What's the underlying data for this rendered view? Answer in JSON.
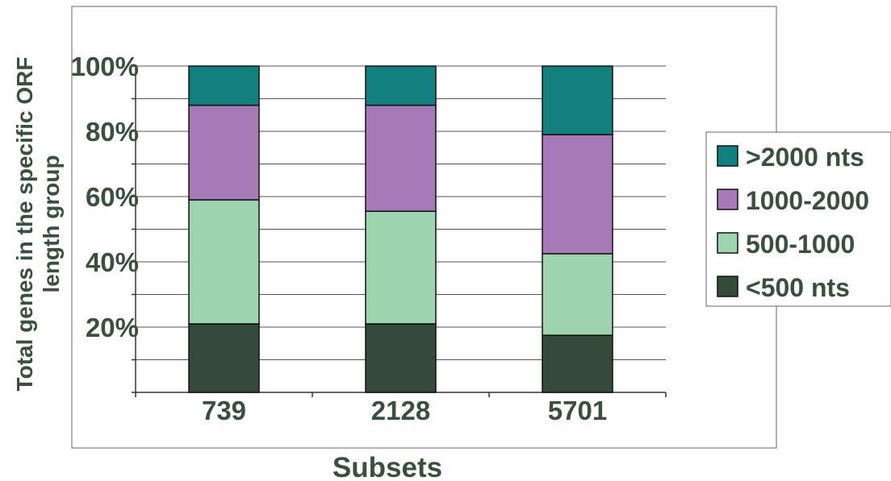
{
  "chart_data": {
    "type": "bar",
    "stacked": "percent",
    "categories": [
      "739",
      "2128",
      "5701"
    ],
    "series": [
      {
        "name": "<500 nts",
        "color": "#354a3a",
        "values": [
          21,
          21,
          17.5
        ]
      },
      {
        "name": "500-1000",
        "color": "#9fd4b0",
        "values": [
          38,
          34.5,
          25
        ]
      },
      {
        "name": "1000-2000",
        "color": "#a57ab7",
        "values": [
          29,
          32.5,
          36.5
        ]
      },
      {
        "name": ">2000 nts",
        "color": "#138080",
        "values": [
          12,
          12,
          21
        ]
      }
    ],
    "y_ticks": [
      "20%",
      "40%",
      "60%",
      "80%",
      "100%"
    ],
    "ylim": [
      0,
      100
    ],
    "xlabel": "Subsets",
    "ylabel": [
      "Total genes in the specific ORF",
      "length group"
    ],
    "grid": true,
    "legend_position": "right",
    "legend_order": [
      ">2000 nts",
      "1000-2000",
      "500-1000",
      "<500 nts"
    ]
  }
}
